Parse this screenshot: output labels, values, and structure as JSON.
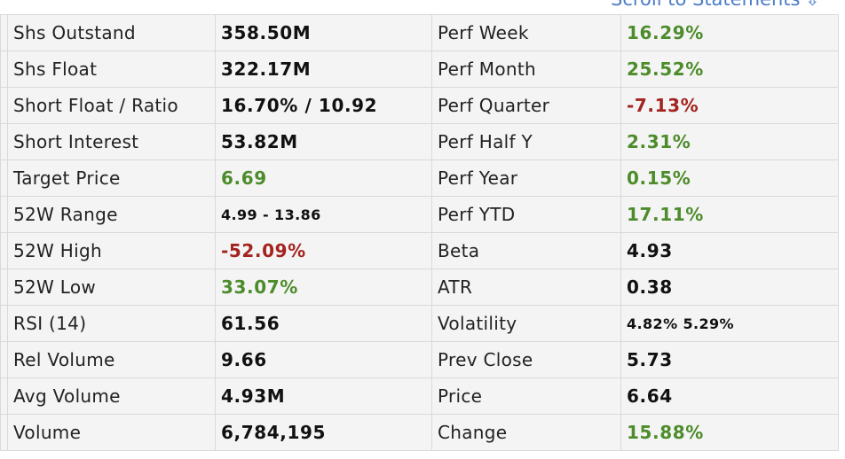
{
  "header": {
    "scroll_link_label": "Scroll to Statements",
    "scroll_link_icon": "arrow-down-icon"
  },
  "colors": {
    "positive": "#4d8c2b",
    "negative": "#a3231f",
    "neutral": "#111111",
    "link": "#4a7cc9"
  },
  "rows": [
    {
      "left_label": "Shs Outstand",
      "left_value": "358.50M",
      "left_tone": "neutral",
      "right_label": "Perf Week",
      "right_value": "16.29%",
      "right_tone": "pos"
    },
    {
      "left_label": "Shs Float",
      "left_value": "322.17M",
      "left_tone": "neutral",
      "right_label": "Perf Month",
      "right_value": "25.52%",
      "right_tone": "pos"
    },
    {
      "left_label": "Short Float / Ratio",
      "left_value": "16.70% / 10.92",
      "left_tone": "neutral",
      "right_label": "Perf Quarter",
      "right_value": "-7.13%",
      "right_tone": "neg"
    },
    {
      "left_label": "Short Interest",
      "left_value": "53.82M",
      "left_tone": "neutral",
      "right_label": "Perf Half Y",
      "right_value": "2.31%",
      "right_tone": "pos"
    },
    {
      "left_label": "Target Price",
      "left_value": "6.69",
      "left_tone": "pos",
      "right_label": "Perf Year",
      "right_value": "0.15%",
      "right_tone": "pos"
    },
    {
      "left_label": "52W Range",
      "left_value": "4.99 - 13.86",
      "left_tone": "neutral",
      "left_small": true,
      "right_label": "Perf YTD",
      "right_value": "17.11%",
      "right_tone": "pos"
    },
    {
      "left_label": "52W High",
      "left_value": "-52.09%",
      "left_tone": "neg",
      "right_label": "Beta",
      "right_value": "4.93",
      "right_tone": "neutral"
    },
    {
      "left_label": "52W Low",
      "left_value": "33.07%",
      "left_tone": "pos",
      "right_label": "ATR",
      "right_value": "0.38",
      "right_tone": "neutral"
    },
    {
      "left_label": "RSI (14)",
      "left_value": "61.56",
      "left_tone": "neutral",
      "right_label": "Volatility",
      "right_value": "4.82% 5.29%",
      "right_tone": "neutral",
      "right_small": true
    },
    {
      "left_label": "Rel Volume",
      "left_value": "9.66",
      "left_tone": "neutral",
      "right_label": "Prev Close",
      "right_value": "5.73",
      "right_tone": "neutral"
    },
    {
      "left_label": "Avg Volume",
      "left_value": "4.93M",
      "left_tone": "neutral",
      "right_label": "Price",
      "right_value": "6.64",
      "right_tone": "neutral"
    },
    {
      "left_label": "Volume",
      "left_value": "6,784,195",
      "left_tone": "neutral",
      "right_label": "Change",
      "right_value": "15.88%",
      "right_tone": "pos"
    }
  ]
}
